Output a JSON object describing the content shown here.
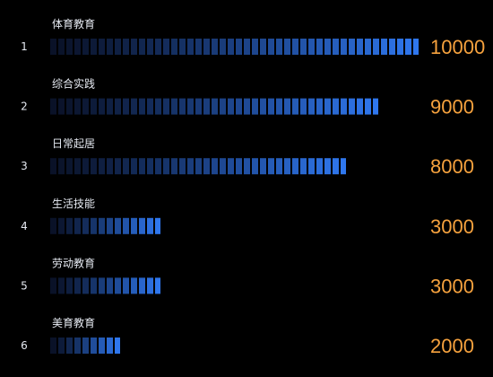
{
  "colors": {
    "background": "#000000",
    "bar_start": "#0a1228",
    "bar_end": "#2f77ee",
    "value": "#f6a23e",
    "label": "#e6eaf2"
  },
  "chart_data": {
    "type": "bar",
    "orientation": "horizontal",
    "style": "segmented",
    "categories": [
      "体育教育",
      "综合实践",
      "日常起居",
      "生活技能",
      "劳动教育",
      "美育教育"
    ],
    "ranks": [
      "1",
      "2",
      "3",
      "4",
      "5",
      "6"
    ],
    "values": [
      10000,
      9000,
      8000,
      3000,
      3000,
      2000
    ],
    "value_labels": [
      "10000",
      "9000",
      "8000",
      "3000",
      "3000",
      "2000"
    ],
    "xlim": [
      0,
      10000
    ],
    "grid": false,
    "legend": "none",
    "title": "",
    "xlabel": "",
    "ylabel": ""
  }
}
